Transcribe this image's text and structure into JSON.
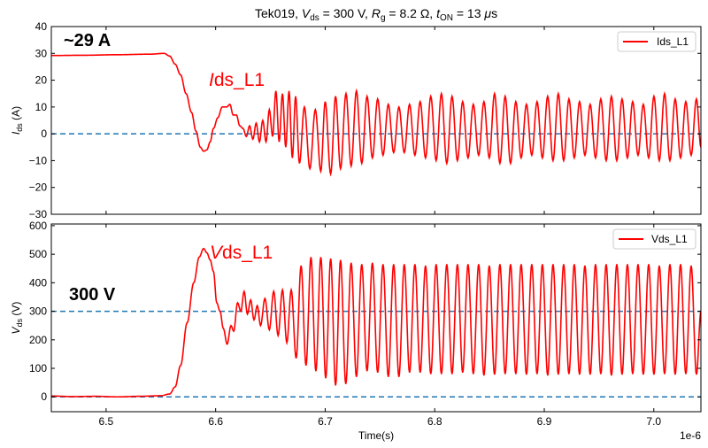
{
  "chart_data": [
    {
      "type": "line",
      "title_parts": {
        "prefix": "Tek019, ",
        "v": "V",
        "v_sub": "ds",
        "v_val": " = 300 V, ",
        "r": "R",
        "r_sub": "g",
        "r_val": " = 8.2 Ω, ",
        "t": "t",
        "t_sub": "ON",
        "t_val": " = 13 ",
        "mu": "μ",
        "unit": "s"
      },
      "ylabel": {
        "main": "I",
        "sub": "ds",
        "unit": " (A)"
      },
      "ylim": [
        -30,
        40
      ],
      "yticks": [
        -30,
        -20,
        -10,
        0,
        10,
        20,
        30,
        40
      ],
      "xlim": [
        6.45,
        7.043
      ],
      "xticks": [
        6.5,
        6.6,
        6.7,
        6.8,
        6.9,
        7.0
      ],
      "grid": false,
      "legend": {
        "placement": "top-right",
        "entries": [
          "Ids_L1"
        ]
      },
      "reference_lines": [
        0
      ],
      "annotations": [
        {
          "text": "~29 A",
          "color": "#000000"
        },
        {
          "text_italic": "I",
          "text": "ds_L1",
          "color": "#ff0000"
        }
      ],
      "series": [
        {
          "name": "Ids_L1",
          "color": "#ff0000",
          "points": [
            [
              6.45,
              29.2
            ],
            [
              6.48,
              29.3
            ],
            [
              6.51,
              29.5
            ],
            [
              6.54,
              29.7
            ],
            [
              6.553,
              30
            ],
            [
              6.558,
              29
            ],
            [
              6.563,
              26
            ],
            [
              6.568,
              22
            ],
            [
              6.573,
              15
            ],
            [
              6.578,
              8
            ],
            [
              6.582,
              1
            ],
            [
              6.586,
              -5
            ],
            [
              6.589,
              -6.5
            ],
            [
              6.592,
              -6
            ],
            [
              6.595,
              -3
            ],
            [
              6.598,
              2
            ],
            [
              6.602,
              6
            ],
            [
              6.606,
              10
            ],
            [
              6.61,
              10
            ],
            [
              6.613,
              11
            ],
            [
              6.616,
              7
            ],
            [
              6.619,
              7
            ],
            [
              6.622,
              3
            ],
            [
              6.625,
              2
            ],
            [
              6.628,
              -1
            ],
            [
              6.631,
              3
            ],
            [
              6.634,
              -2
            ],
            [
              6.637,
              4
            ],
            [
              6.64,
              -3
            ],
            [
              6.643,
              5
            ],
            [
              6.646,
              -3
            ],
            [
              6.649,
              9
            ],
            [
              6.652,
              -1
            ],
            [
              6.655,
              16
            ],
            [
              6.658,
              -3
            ],
            [
              6.661,
              15
            ],
            [
              6.664,
              -5
            ],
            [
              6.667,
              16
            ],
            [
              6.67,
              -9
            ],
            [
              6.673,
              14
            ],
            [
              6.6765,
              -11
            ],
            [
              6.681,
              10
            ],
            [
              6.686,
              -13
            ],
            [
              6.691,
              9
            ],
            [
              6.696,
              -14
            ],
            [
              6.7,
              12
            ],
            [
              6.705,
              -15
            ],
            [
              6.7095,
              14
            ],
            [
              6.714,
              -13
            ],
            [
              6.719,
              15
            ],
            [
              6.7237,
              -12
            ],
            [
              6.7285,
              16
            ],
            [
              6.7334,
              -11
            ],
            [
              6.7382,
              14
            ],
            [
              6.7431,
              -9
            ],
            [
              6.7479,
              13
            ],
            [
              6.7528,
              -8
            ],
            [
              6.7576,
              11
            ],
            [
              6.7625,
              -7
            ],
            [
              6.7673,
              10
            ],
            [
              6.7722,
              -7
            ],
            [
              6.777,
              11
            ],
            [
              6.7819,
              -8
            ],
            [
              6.7867,
              12
            ],
            [
              6.7916,
              -9
            ],
            [
              6.7964,
              14
            ],
            [
              6.8013,
              -10
            ],
            [
              6.8061,
              15
            ],
            [
              6.811,
              -11
            ],
            [
              6.8158,
              14
            ],
            [
              6.8207,
              -10
            ],
            [
              6.8255,
              12
            ],
            [
              6.8304,
              -9
            ],
            [
              6.8352,
              11
            ],
            [
              6.8401,
              -8
            ],
            [
              6.8449,
              12
            ],
            [
              6.8498,
              -9
            ],
            [
              6.8546,
              15
            ],
            [
              6.8595,
              -11
            ],
            [
              6.8643,
              14
            ],
            [
              6.8692,
              -11
            ],
            [
              6.874,
              12
            ],
            [
              6.8789,
              -9
            ],
            [
              6.8837,
              11
            ],
            [
              6.8886,
              -8
            ],
            [
              6.8934,
              12
            ],
            [
              6.8983,
              -9
            ],
            [
              6.9031,
              14
            ],
            [
              6.908,
              -10
            ],
            [
              6.9128,
              15
            ],
            [
              6.9177,
              -10
            ],
            [
              6.9225,
              13
            ],
            [
              6.9274,
              -9
            ],
            [
              6.9322,
              12
            ],
            [
              6.9371,
              -8
            ],
            [
              6.9419,
              11
            ],
            [
              6.9468,
              -9
            ],
            [
              6.9516,
              13
            ],
            [
              6.9565,
              -10
            ],
            [
              6.9613,
              14
            ],
            [
              6.9662,
              -10
            ],
            [
              6.971,
              13
            ],
            [
              6.9759,
              -9
            ],
            [
              6.9807,
              12
            ],
            [
              6.9856,
              -8
            ],
            [
              6.9904,
              11
            ],
            [
              6.9953,
              -9
            ],
            [
              7.0001,
              14
            ],
            [
              7.005,
              -10
            ],
            [
              7.0098,
              15
            ],
            [
              7.0147,
              -10
            ],
            [
              7.0195,
              13
            ],
            [
              7.0244,
              -9
            ],
            [
              7.0292,
              12
            ],
            [
              7.0341,
              -8
            ],
            [
              7.0389,
              13
            ],
            [
              7.043,
              -5
            ]
          ]
        }
      ]
    },
    {
      "type": "line",
      "xlabel": "Time(s)",
      "x_offset_label": "1e-6",
      "ylabel": {
        "main": "V",
        "sub": "ds",
        "unit": " (V)"
      },
      "ylim": [
        -52,
        606
      ],
      "yticks": [
        0,
        100,
        200,
        300,
        400,
        500,
        600
      ],
      "xlim": [
        6.45,
        7.043
      ],
      "xticks": [
        6.5,
        6.6,
        6.7,
        6.8,
        6.9,
        7.0
      ],
      "xticklabels": [
        "6.5",
        "6.6",
        "6.7",
        "6.8",
        "6.9",
        "7.0"
      ],
      "grid": false,
      "legend": {
        "placement": "top-right",
        "entries": [
          "Vds_L1"
        ]
      },
      "reference_lines": [
        300,
        0
      ],
      "annotations": [
        {
          "text": "300 V",
          "color": "#000000"
        },
        {
          "text_italic": "V",
          "text": "ds_L1",
          "color": "#ff0000"
        }
      ],
      "series": [
        {
          "name": "Vds_L1",
          "color": "#ff0000",
          "points": [
            [
              6.45,
              3
            ],
            [
              6.47,
              1
            ],
            [
              6.49,
              2
            ],
            [
              6.51,
              0
            ],
            [
              6.53,
              2
            ],
            [
              6.55,
              4
            ],
            [
              6.558,
              10
            ],
            [
              6.563,
              35
            ],
            [
              6.568,
              110
            ],
            [
              6.574,
              260
            ],
            [
              6.58,
              400
            ],
            [
              6.585,
              490
            ],
            [
              6.589,
              520
            ],
            [
              6.592,
              505
            ],
            [
              6.595,
              480
            ],
            [
              6.598,
              440
            ],
            [
              6.601,
              330
            ],
            [
              6.604,
              300
            ],
            [
              6.607,
              240
            ],
            [
              6.6105,
              185
            ],
            [
              6.614,
              250
            ],
            [
              6.6165,
              230
            ],
            [
              6.62,
              330
            ],
            [
              6.623,
              300
            ],
            [
              6.626,
              370
            ],
            [
              6.629,
              290
            ],
            [
              6.632,
              340
            ],
            [
              6.635,
              270
            ],
            [
              6.638,
              320
            ],
            [
              6.641,
              250
            ],
            [
              6.645,
              345
            ],
            [
              6.649,
              235
            ],
            [
              6.653,
              370
            ],
            [
              6.657,
              215
            ],
            [
              6.661,
              375
            ],
            [
              6.665,
              190
            ],
            [
              6.669,
              375
            ],
            [
              6.6735,
              135
            ],
            [
              6.678,
              460
            ],
            [
              6.6825,
              110
            ],
            [
              6.687,
              490
            ],
            [
              6.6915,
              90
            ],
            [
              6.696,
              490
            ],
            [
              6.7005,
              65
            ],
            [
              6.705,
              485
            ],
            [
              6.7095,
              40
            ],
            [
              6.714,
              480
            ],
            [
              6.7188,
              45
            ],
            [
              6.7237,
              470
            ],
            [
              6.7285,
              70
            ],
            [
              6.7334,
              465
            ],
            [
              6.7382,
              90
            ],
            [
              6.7431,
              470
            ],
            [
              6.7479,
              85
            ],
            [
              6.7528,
              465
            ],
            [
              6.7576,
              70
            ],
            [
              6.7625,
              465
            ],
            [
              6.7673,
              70
            ],
            [
              6.7722,
              465
            ],
            [
              6.777,
              85
            ],
            [
              6.7819,
              465
            ],
            [
              6.7867,
              85
            ],
            [
              6.7916,
              460
            ],
            [
              6.7964,
              80
            ],
            [
              6.8013,
              465
            ],
            [
              6.8061,
              80
            ],
            [
              6.811,
              465
            ],
            [
              6.8158,
              80
            ],
            [
              6.8207,
              465
            ],
            [
              6.8255,
              85
            ],
            [
              6.8304,
              465
            ],
            [
              6.8352,
              80
            ],
            [
              6.8401,
              465
            ],
            [
              6.8449,
              75
            ],
            [
              6.8498,
              460
            ],
            [
              6.8546,
              78
            ],
            [
              6.8595,
              465
            ],
            [
              6.8643,
              80
            ],
            [
              6.8692,
              465
            ],
            [
              6.874,
              80
            ],
            [
              6.8789,
              465
            ],
            [
              6.8837,
              78
            ],
            [
              6.8886,
              465
            ],
            [
              6.8934,
              80
            ],
            [
              6.8983,
              465
            ],
            [
              6.9031,
              75
            ],
            [
              6.908,
              465
            ],
            [
              6.9128,
              78
            ],
            [
              6.9177,
              465
            ],
            [
              6.9225,
              80
            ],
            [
              6.9274,
              465
            ],
            [
              6.9322,
              78
            ],
            [
              6.9371,
              460
            ],
            [
              6.9419,
              78
            ],
            [
              6.9468,
              465
            ],
            [
              6.9516,
              80
            ],
            [
              6.9565,
              465
            ],
            [
              6.9613,
              75
            ],
            [
              6.9662,
              465
            ],
            [
              6.971,
              78
            ],
            [
              6.9759,
              465
            ],
            [
              6.9807,
              80
            ],
            [
              6.9856,
              465
            ],
            [
              6.9904,
              78
            ],
            [
              6.9953,
              465
            ],
            [
              7.0001,
              78
            ],
            [
              7.005,
              460
            ],
            [
              7.0098,
              80
            ],
            [
              7.0147,
              465
            ],
            [
              7.0195,
              78
            ],
            [
              7.0244,
              465
            ],
            [
              7.0292,
              80
            ],
            [
              7.0341,
              460
            ],
            [
              7.0389,
              78
            ],
            [
              7.043,
              300
            ]
          ]
        }
      ]
    }
  ],
  "colors": {
    "signal": "#ff0000",
    "reference": "#1f77b4",
    "axes": "#000000"
  }
}
